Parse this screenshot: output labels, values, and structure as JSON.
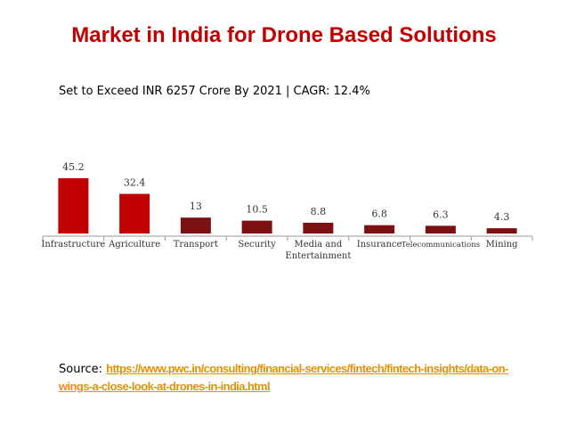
{
  "title": "Market in India for Drone Based Solutions",
  "subtitle": "Set to Exceed INR 6257 Crore By 2021 | CAGR: 12.4%",
  "source": {
    "label": "Source:",
    "url": "https://www.pwc.in/consulting/financial-services/fintech/fintech-insights/data-on-wings-a-close-look-at-drones-in-india.html"
  },
  "chart_data": {
    "type": "bar",
    "categories": [
      "Infrastructure",
      "Agriculture",
      "Transport",
      "Security",
      "Media and Entertainment",
      "Insurance",
      "Telecommunications",
      "Mining"
    ],
    "category_lines": [
      [
        "Infrastructure"
      ],
      [
        "Agriculture"
      ],
      [
        "Transport"
      ],
      [
        "Security"
      ],
      [
        "Media and",
        "Entertainment"
      ],
      [
        "Insurance"
      ],
      [
        "Telecommunications"
      ],
      [
        "Mining"
      ]
    ],
    "values": [
      45.2,
      32.4,
      13,
      10.5,
      8.8,
      6.8,
      6.3,
      4.3
    ],
    "value_labels": [
      "45.2",
      "32.4",
      "13",
      "10.5",
      "8.8",
      "6.8",
      "6.3",
      "4.3"
    ],
    "colors": [
      "#c00000",
      "#c00000",
      "#7b1111",
      "#7b1111",
      "#7b1111",
      "#7b1111",
      "#7b1111",
      "#7b1111"
    ],
    "ylim": [
      0,
      45.2
    ],
    "grid": false,
    "legend": "none"
  }
}
